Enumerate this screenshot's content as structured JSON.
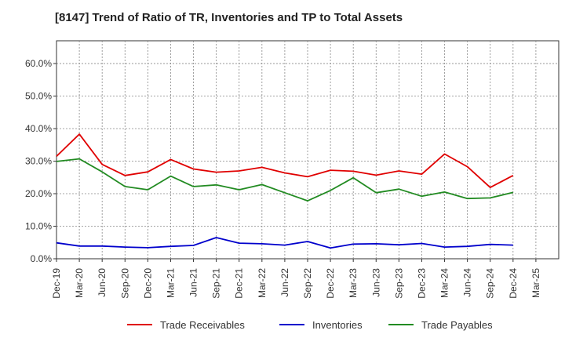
{
  "chart_data": {
    "type": "line",
    "title": "[8147]  Trend of Ratio of TR, Inventories and TP to Total Assets",
    "xlabel": "",
    "ylabel": "",
    "ylim": [
      0,
      0.67
    ],
    "y_ticks": [
      0,
      0.1,
      0.2,
      0.3,
      0.4,
      0.5,
      0.6
    ],
    "y_tick_labels": [
      "0.0%",
      "10.0%",
      "20.0%",
      "30.0%",
      "40.0%",
      "50.0%",
      "60.0%"
    ],
    "x": [
      "Dec-19",
      "Mar-20",
      "Jun-20",
      "Sep-20",
      "Dec-20",
      "Mar-21",
      "Jun-21",
      "Sep-21",
      "Dec-21",
      "Mar-22",
      "Jun-22",
      "Sep-22",
      "Dec-22",
      "Mar-23",
      "Jun-23",
      "Sep-23",
      "Dec-23",
      "Mar-24",
      "Jun-24",
      "Sep-24",
      "Dec-24",
      "Mar-25"
    ],
    "grid": true,
    "legend_position": "bottom",
    "series": [
      {
        "name": "Trade Receivables",
        "color": "#e00000",
        "values": [
          0.315,
          0.383,
          0.29,
          0.256,
          0.267,
          0.305,
          0.276,
          0.266,
          0.27,
          0.281,
          0.264,
          0.252,
          0.272,
          0.269,
          0.257,
          0.27,
          0.26,
          0.322,
          0.283,
          0.219,
          0.256,
          null
        ]
      },
      {
        "name": "Inventories",
        "color": "#0000cc",
        "values": [
          0.049,
          0.039,
          0.039,
          0.036,
          0.034,
          0.038,
          0.041,
          0.065,
          0.048,
          0.046,
          0.042,
          0.053,
          0.033,
          0.045,
          0.046,
          0.043,
          0.047,
          0.036,
          0.038,
          0.044,
          0.042,
          null
        ]
      },
      {
        "name": "Trade Payables",
        "color": "#228b22",
        "values": [
          0.299,
          0.307,
          0.267,
          0.222,
          0.212,
          0.254,
          0.222,
          0.227,
          0.212,
          0.228,
          0.203,
          0.178,
          0.21,
          0.249,
          0.203,
          0.214,
          0.192,
          0.205,
          0.185,
          0.187,
          0.204,
          null
        ]
      }
    ]
  }
}
